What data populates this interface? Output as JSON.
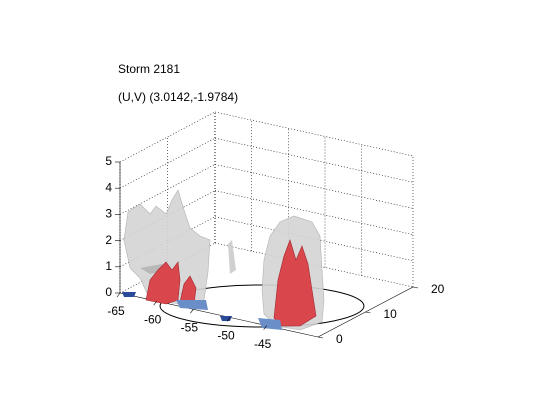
{
  "chart_data": {
    "type": "isosurface3d",
    "title": "Storm 2181",
    "subtitle": "(U,V) (3.0142,-1.9784)",
    "xlim": [
      -65,
      -38
    ],
    "xticks": [
      -65,
      -60,
      -55,
      -50,
      -45
    ],
    "ylim": [
      0,
      20
    ],
    "yticks": [
      0,
      10,
      20
    ],
    "zlim": [
      0,
      5
    ],
    "zticks": [
      0,
      1,
      2,
      3,
      4,
      5
    ],
    "grid": true
  }
}
